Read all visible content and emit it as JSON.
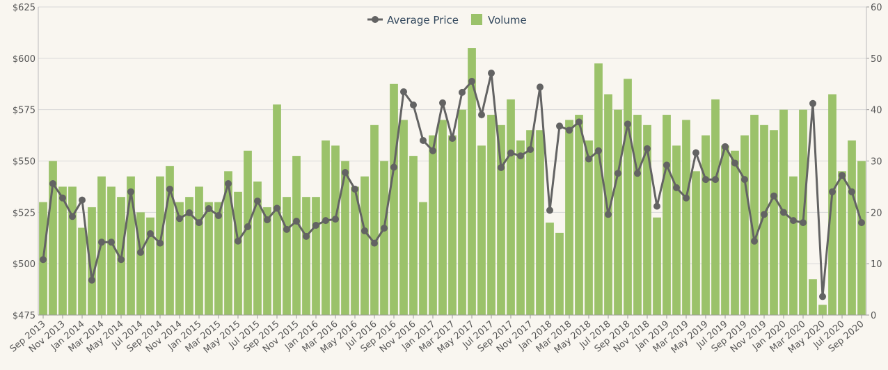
{
  "chart_data": {
    "type": "combo",
    "categories": [
      "Sep 2013",
      null,
      "Nov 2013",
      null,
      "Jan 2014",
      null,
      "Mar 2014",
      null,
      "May 2014",
      null,
      "Jul 2014",
      null,
      "Sep 2014",
      null,
      "Nov 2014",
      null,
      "Jan 2015",
      null,
      "Mar 2015",
      null,
      "May 2015",
      null,
      "Jul 2015",
      null,
      "Sep 2015",
      null,
      "Nov 2015",
      null,
      "Jan 2016",
      null,
      "Mar 2016",
      null,
      "May 2016",
      null,
      "Jul 2016",
      null,
      "Sep 2016",
      null,
      "Nov 2016",
      null,
      "Jan 2017",
      null,
      "Mar 2017",
      null,
      "May 2017",
      null,
      "Jul 2017",
      null,
      "Sep 2017",
      null,
      "Nov 2017",
      null,
      "Jan 2018",
      null,
      "Mar 2018",
      null,
      "May 2018",
      null,
      "Jul 2018",
      null,
      "Sep 2018",
      null,
      "Nov 2018",
      null,
      "Jan 2019",
      null,
      "Mar 2019",
      null,
      "May 2019",
      null,
      "Jul 2019",
      null,
      "Sep 2019",
      null,
      "Nov 2019",
      null,
      "Jan 2020",
      null,
      "Mar 2020",
      null,
      "May 2020",
      null,
      "Jul 2020",
      null,
      "Sep 2020"
    ],
    "series": [
      {
        "name": "Volume",
        "type": "bar",
        "axis": "y2",
        "color": "#9bc26a",
        "values": [
          22,
          30,
          25,
          25,
          17,
          21,
          27,
          25,
          23,
          27,
          20,
          19,
          27,
          29,
          22,
          23,
          25,
          22,
          22,
          28,
          24,
          32,
          26,
          21,
          41,
          23,
          31,
          23,
          23,
          34,
          33,
          30,
          25,
          27,
          37,
          30,
          45,
          38,
          31,
          22,
          35,
          38,
          35,
          40,
          52,
          33,
          39,
          37,
          42,
          34,
          36,
          36,
          18,
          16,
          38,
          39,
          34,
          49,
          43,
          40,
          46,
          39,
          37,
          19,
          39,
          33,
          38,
          28,
          35,
          42,
          33,
          32,
          35,
          39,
          37,
          36,
          40,
          27,
          40,
          7,
          2,
          43,
          28,
          34,
          30
        ]
      },
      {
        "name": "Average Price",
        "type": "line",
        "axis": "y",
        "color": "#636363",
        "values": [
          502,
          539,
          532,
          523,
          531,
          492,
          510.5,
          510.5,
          502,
          535,
          505.5,
          514.6,
          510,
          536.3,
          522,
          524.8,
          520,
          526.8,
          523.4,
          539,
          511,
          518,
          530.5,
          521.4,
          527,
          516.7,
          520.7,
          513.3,
          518.7,
          521,
          521.7,
          544.4,
          536.3,
          516,
          510,
          517.3,
          547,
          583.7,
          577.3,
          560,
          555,
          578.3,
          561,
          583.4,
          588.8,
          572.5,
          592.8,
          546.8,
          553.9,
          552.5,
          555.6,
          586,
          526,
          567,
          565,
          569,
          551,
          555,
          524,
          544,
          568,
          544,
          556,
          528,
          548,
          537,
          532,
          554,
          541,
          541,
          557,
          549,
          541,
          511,
          524,
          533,
          525,
          521,
          520,
          578,
          484,
          535,
          543,
          535,
          520
        ]
      }
    ],
    "ylim": [
      475,
      625
    ],
    "yticks": [
      {
        "value": 475,
        "label": "$475"
      },
      {
        "value": 500,
        "label": "$500"
      },
      {
        "value": 525,
        "label": "$525"
      },
      {
        "value": 550,
        "label": "$550"
      },
      {
        "value": 575,
        "label": "$575"
      },
      {
        "value": 600,
        "label": "$600"
      },
      {
        "value": 625,
        "label": "$625"
      }
    ],
    "y2lim": [
      0,
      60
    ],
    "y2ticks": [
      0,
      10,
      20,
      30,
      40,
      50,
      60
    ],
    "grid": true,
    "legend": "top"
  }
}
